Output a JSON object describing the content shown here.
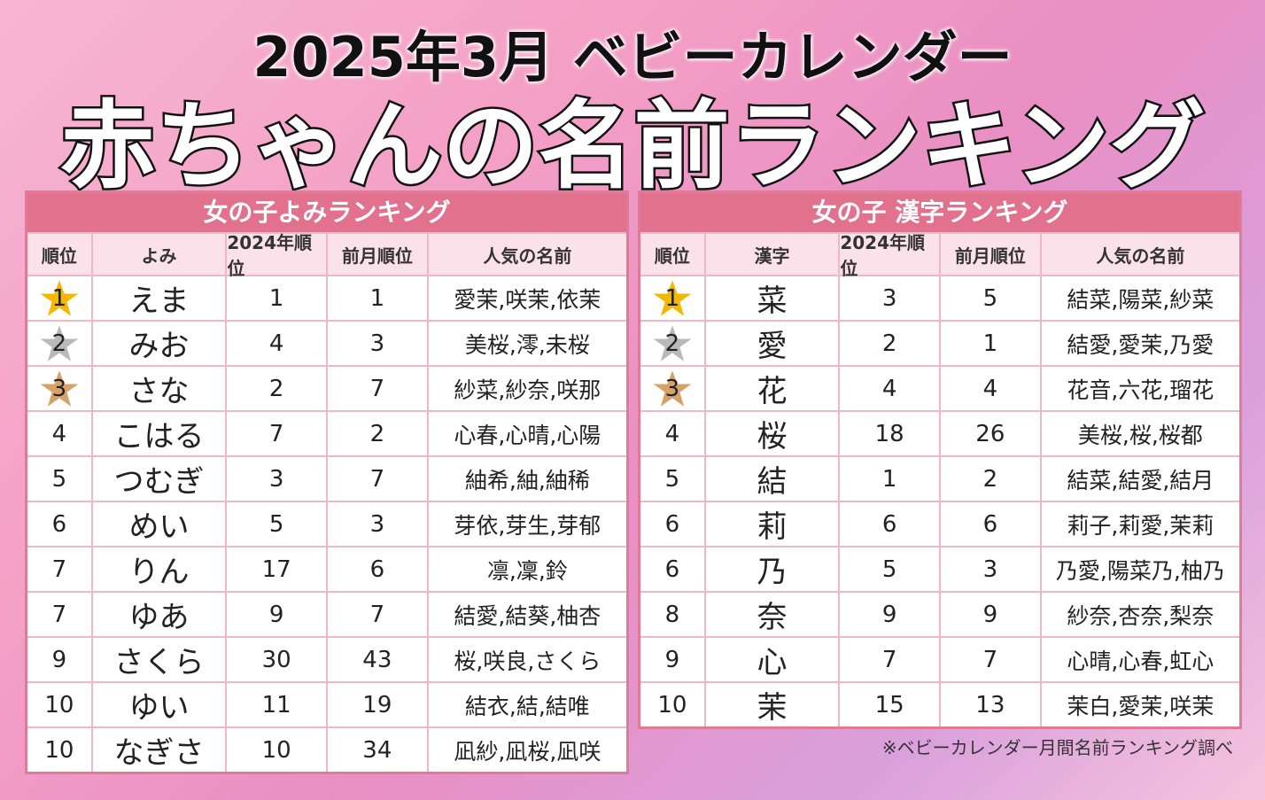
{
  "header": {
    "line1": "2025年3月 ベビーカレンダー",
    "line2": "赤ちゃんの名前ランキング"
  },
  "tables": [
    {
      "title": "女の子よみランキング",
      "columns": [
        "順位",
        "よみ",
        "2024年順位",
        "前月順位",
        "人気の名前"
      ],
      "rows": [
        [
          1,
          "えま",
          1,
          1,
          "愛茉,咲茉,依茉"
        ],
        [
          2,
          "みお",
          4,
          3,
          "美桜,澪,未桜"
        ],
        [
          3,
          "さな",
          2,
          7,
          "紗菜,紗奈,咲那"
        ],
        [
          4,
          "こはる",
          7,
          2,
          "心春,心晴,心陽"
        ],
        [
          5,
          "つむぎ",
          3,
          7,
          "紬希,紬,紬稀"
        ],
        [
          6,
          "めい",
          5,
          3,
          "芽依,芽生,芽郁"
        ],
        [
          7,
          "りん",
          17,
          6,
          "凛,凜,鈴"
        ],
        [
          7,
          "ゆあ",
          9,
          7,
          "結愛,結葵,柚杏"
        ],
        [
          9,
          "さくら",
          30,
          43,
          "桜,咲良,さくら"
        ],
        [
          10,
          "ゆい",
          11,
          19,
          "結衣,結,結唯"
        ],
        [
          10,
          "なぎさ",
          10,
          34,
          "凪紗,凪桜,凪咲"
        ]
      ]
    },
    {
      "title": "女の子 漢字ランキング",
      "columns": [
        "順位",
        "漢字",
        "2024年順位",
        "前月順位",
        "人気の名前"
      ],
      "rows": [
        [
          1,
          "菜",
          3,
          5,
          "結菜,陽菜,紗菜"
        ],
        [
          2,
          "愛",
          2,
          1,
          "結愛,愛茉,乃愛"
        ],
        [
          3,
          "花",
          4,
          4,
          "花音,六花,瑠花"
        ],
        [
          4,
          "桜",
          18,
          26,
          "美桜,桜,桜都"
        ],
        [
          5,
          "結",
          1,
          2,
          "結菜,結愛,結月"
        ],
        [
          6,
          "莉",
          6,
          6,
          "莉子,莉愛,茉莉"
        ],
        [
          6,
          "乃",
          5,
          3,
          "乃愛,陽菜乃,柚乃"
        ],
        [
          8,
          "奈",
          9,
          9,
          "紗奈,杏奈,梨奈"
        ],
        [
          9,
          "心",
          7,
          7,
          "心晴,心春,虹心"
        ],
        [
          10,
          "茉",
          15,
          13,
          "茉白,愛茉,咲茉"
        ]
      ]
    }
  ],
  "footnote": "※ベビーカレンダー月間名前ランキング調べ"
}
